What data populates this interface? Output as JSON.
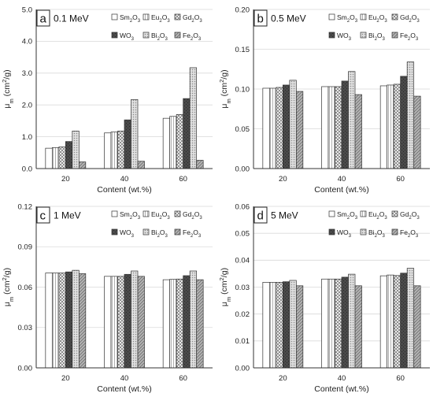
{
  "chart_data": [
    {
      "type": "bar",
      "panel_letter": "a",
      "title": "0.1 MeV",
      "xlabel": "Content (wt.%)",
      "ylabel": "μm (cm²/g)",
      "ylim": [
        0,
        5
      ],
      "yticks": [
        "0.0",
        "1.0",
        "2.0",
        "3.0",
        "4.0",
        "5.0"
      ],
      "categories": [
        "20",
        "40",
        "60"
      ],
      "legend_position": "top-right",
      "series": [
        {
          "name": "Sm2O3",
          "values": [
            0.64,
            1.12,
            1.58
          ]
        },
        {
          "name": "Eu2O3",
          "values": [
            0.66,
            1.15,
            1.64
          ]
        },
        {
          "name": "Gd2O3",
          "values": [
            0.68,
            1.18,
            1.7
          ]
        },
        {
          "name": "WO3",
          "values": [
            0.85,
            1.53,
            2.2
          ]
        },
        {
          "name": "Bi2O3",
          "values": [
            1.18,
            2.17,
            3.17
          ]
        },
        {
          "name": "Fe2O3",
          "values": [
            0.21,
            0.23,
            0.26
          ]
        }
      ]
    },
    {
      "type": "bar",
      "panel_letter": "b",
      "title": "0.5 MeV",
      "xlabel": "Content (wt.%)",
      "ylabel": "μm (cm²/g)",
      "ylim": [
        0,
        0.2
      ],
      "yticks": [
        "0.00",
        "0.05",
        "0.10",
        "0.15",
        "0.20"
      ],
      "categories": [
        "20",
        "40",
        "60"
      ],
      "legend_position": "top-right",
      "series": [
        {
          "name": "Sm2O3",
          "values": [
            0.101,
            0.103,
            0.104
          ]
        },
        {
          "name": "Eu2O3",
          "values": [
            0.101,
            0.103,
            0.105
          ]
        },
        {
          "name": "Gd2O3",
          "values": [
            0.102,
            0.103,
            0.106
          ]
        },
        {
          "name": "WO3",
          "values": [
            0.105,
            0.11,
            0.116
          ]
        },
        {
          "name": "Bi2O3",
          "values": [
            0.111,
            0.122,
            0.134
          ]
        },
        {
          "name": "Fe2O3",
          "values": [
            0.097,
            0.093,
            0.091
          ]
        }
      ]
    },
    {
      "type": "bar",
      "panel_letter": "c",
      "title": "1 MeV",
      "xlabel": "Content (wt.%)",
      "ylabel": "μm (cm²/g)",
      "ylim": [
        0,
        0.12
      ],
      "yticks": [
        "0.00",
        "0.03",
        "0.06",
        "0.09",
        "0.12"
      ],
      "categories": [
        "20",
        "40",
        "60"
      ],
      "legend_position": "top-right",
      "series": [
        {
          "name": "Sm2O3",
          "values": [
            0.0705,
            0.068,
            0.0655
          ]
        },
        {
          "name": "Eu2O3",
          "values": [
            0.0705,
            0.068,
            0.0658
          ]
        },
        {
          "name": "Gd2O3",
          "values": [
            0.0705,
            0.068,
            0.066
          ]
        },
        {
          "name": "WO3",
          "values": [
            0.0713,
            0.0695,
            0.0685
          ]
        },
        {
          "name": "Bi2O3",
          "values": [
            0.0725,
            0.072,
            0.072
          ]
        },
        {
          "name": "Fe2O3",
          "values": [
            0.07,
            0.068,
            0.0655
          ]
        }
      ]
    },
    {
      "type": "bar",
      "panel_letter": "d",
      "title": "5 MeV",
      "xlabel": "Content (wt.%)",
      "ylabel": "μm (cm²/g)",
      "ylim": [
        0,
        0.06
      ],
      "yticks": [
        "0.00",
        "0.01",
        "0.02",
        "0.03",
        "0.04",
        "0.05",
        "0.06"
      ],
      "categories": [
        "20",
        "40",
        "60"
      ],
      "legend_position": "top-right",
      "series": [
        {
          "name": "Sm2O3",
          "values": [
            0.0318,
            0.033,
            0.0342
          ]
        },
        {
          "name": "Eu2O3",
          "values": [
            0.0318,
            0.033,
            0.0345
          ]
        },
        {
          "name": "Gd2O3",
          "values": [
            0.0318,
            0.033,
            0.0343
          ]
        },
        {
          "name": "WO3",
          "values": [
            0.032,
            0.0337,
            0.0352
          ]
        },
        {
          "name": "Bi2O3",
          "values": [
            0.0325,
            0.0348,
            0.037
          ]
        },
        {
          "name": "Fe2O3",
          "values": [
            0.0305,
            0.0305,
            0.0305
          ]
        }
      ]
    }
  ]
}
